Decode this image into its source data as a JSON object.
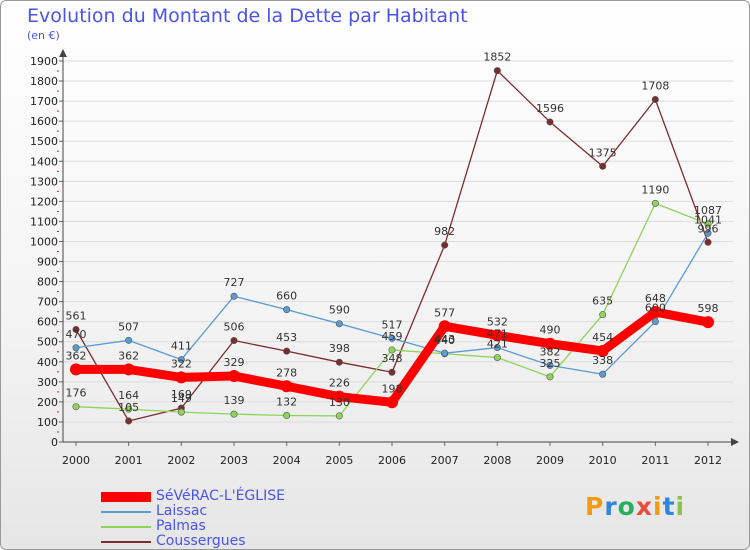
{
  "title": "Evolution du Montant de la Dette par Habitant",
  "unit_label": "(en €)",
  "logo": {
    "text": "Proxiti",
    "letters": [
      "P",
      "r",
      "o",
      "x",
      "i",
      "t",
      "i"
    ],
    "colors": [
      "#f39c12",
      "#2e86de",
      "#27ae60",
      "#e74c3c",
      "#f39c12",
      "#2e86de",
      "#8bc34a"
    ]
  },
  "chart_data": {
    "type": "line",
    "title": "Evolution du Montant de la Dette par Habitant",
    "ylabel": "(en €)",
    "xlabel": "",
    "x": [
      "2000",
      "2001",
      "2002",
      "2003",
      "2004",
      "2005",
      "2006",
      "2007",
      "2008",
      "2009",
      "2010",
      "2011",
      "2012"
    ],
    "ylim": [
      0,
      1900
    ],
    "yticks": [
      0,
      100,
      200,
      300,
      400,
      500,
      600,
      700,
      800,
      900,
      1000,
      1100,
      1200,
      1300,
      1400,
      1500,
      1600,
      1700,
      1800,
      1900
    ],
    "grid": true,
    "legend_position": "bottom-left",
    "series": [
      {
        "name": "SéVéRAC-L'ÉGLISE",
        "color": "#ff0000",
        "emphasis": true,
        "values": [
          362,
          362,
          322,
          329,
          278,
          226,
          198,
          577,
          532,
          490,
          454,
          648,
          598
        ],
        "labels": [
          "362",
          "362",
          "322",
          "329",
          "278",
          "226",
          "198",
          "577",
          "532",
          "490",
          "454",
          "648",
          "598"
        ]
      },
      {
        "name": "Laissac",
        "color": "#5b9bd5",
        "values": [
          470,
          507,
          411,
          727,
          660,
          590,
          517,
          443,
          471,
          382,
          338,
          600,
          1041
        ],
        "labels": [
          "470",
          "507",
          "411",
          "727",
          "660",
          "590",
          "517",
          "443",
          "471",
          "382",
          "338",
          "600",
          "1041"
        ]
      },
      {
        "name": "Palmas",
        "color": "#8fd45a",
        "values": [
          176,
          164,
          149,
          139,
          132,
          130,
          459,
          440,
          421,
          325,
          635,
          1190,
          1087
        ],
        "labels": [
          "176",
          "164",
          "149",
          "139",
          "132",
          "130",
          "459",
          "440",
          "421",
          "325",
          "635",
          "1190",
          "1087"
        ]
      },
      {
        "name": "Coussergues",
        "color": "#7b2d2d",
        "values": [
          561,
          105,
          169,
          506,
          453,
          398,
          348,
          982,
          1852,
          1596,
          1375,
          1708,
          996
        ],
        "labels": [
          "561",
          "105",
          "169",
          "506",
          "453",
          "398",
          "348",
          "982",
          "1852",
          "1596",
          "1375",
          "1708",
          "996"
        ]
      }
    ]
  }
}
